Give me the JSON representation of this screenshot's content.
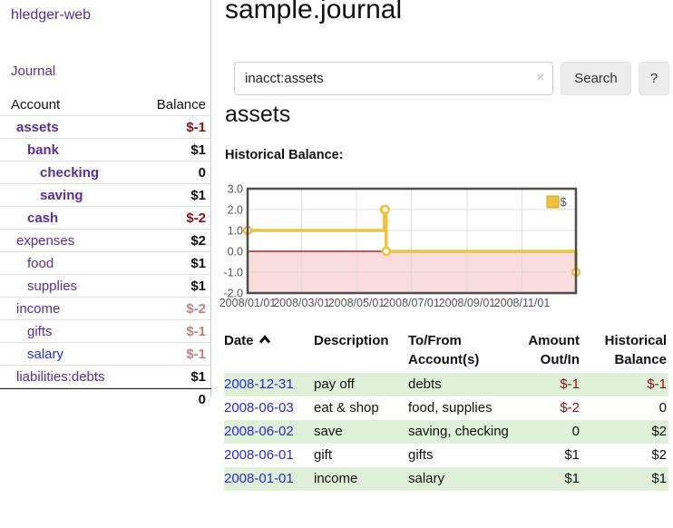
{
  "colors": {
    "accent_purple": "#5c2d91",
    "link_blue": "#2a2ad0",
    "negative": "#8b1212",
    "negative_light": "#c08080",
    "stripe_green": "#dff0d8",
    "chart_line_yellow": "#edc240",
    "chart_negative_region": "#fbdcdc",
    "chart_zero_line": "#a40000"
  },
  "sidebar": {
    "brand": "hledger-web",
    "journal_link": "Journal",
    "accounts": {
      "col_account": "Account",
      "col_balance": "Balance",
      "rows": [
        {
          "name": "assets",
          "level": 1,
          "bold": true,
          "balance": "$-1",
          "style": "negative"
        },
        {
          "name": "bank",
          "level": 2,
          "bold": true,
          "balance": "$1",
          "style": "normal"
        },
        {
          "name": "checking",
          "level": 3,
          "bold": true,
          "balance": "0",
          "style": "normal"
        },
        {
          "name": "saving",
          "level": 3,
          "bold": true,
          "balance": "$1",
          "style": "normal"
        },
        {
          "name": "cash",
          "level": 2,
          "bold": true,
          "balance": "$-2",
          "style": "negative"
        },
        {
          "name": "expenses",
          "level": 1,
          "bold": false,
          "balance": "$2",
          "style": "normal"
        },
        {
          "name": "food",
          "level": 2,
          "bold": false,
          "balance": "$1",
          "style": "normal"
        },
        {
          "name": "supplies",
          "level": 2,
          "bold": false,
          "balance": "$1",
          "style": "normal"
        },
        {
          "name": "income",
          "level": 1,
          "bold": false,
          "balance": "$-2",
          "style": "negative-light"
        },
        {
          "name": "gifts",
          "level": 2,
          "bold": false,
          "balance": "$-1",
          "style": "negative-light"
        },
        {
          "name": "salary",
          "level": 2,
          "bold": false,
          "balance": "$-1",
          "style": "negative-light",
          "link_color": "blue"
        },
        {
          "name": "liabilities:debts",
          "level": 1,
          "bold": false,
          "balance": "$1",
          "style": "normal"
        }
      ],
      "total": "0"
    }
  },
  "main": {
    "title": "sample.journal",
    "search": {
      "value": "inacct:assets",
      "clear_label": "×",
      "button_label": "Search",
      "help_label": "?"
    },
    "account_heading": "assets",
    "chart_heading": "Historical Balance:"
  },
  "chart_data": {
    "type": "line",
    "step": true,
    "title": "Historical Balance",
    "x_domain": [
      "2008-01-01",
      "2008-12-31"
    ],
    "ylim": [
      -2,
      3
    ],
    "yticks": [
      "3.0",
      "2.0",
      "1.0",
      "0.0",
      "-1.0",
      "-2.0"
    ],
    "xticks": [
      "2008/01/01",
      "2008/03/01",
      "2008/05/01",
      "2008/07/01",
      "2008/09/01",
      "2008/11/01"
    ],
    "grid": true,
    "legend_position": "top-right",
    "series": [
      {
        "name": "$",
        "color": "#edc240",
        "points": [
          [
            "2008-01-01",
            1
          ],
          [
            "2008-06-01",
            2
          ],
          [
            "2008-06-02",
            2
          ],
          [
            "2008-06-03",
            0
          ],
          [
            "2008-12-31",
            -1
          ]
        ]
      }
    ]
  },
  "transactions": {
    "headers": {
      "date": "Date",
      "description": "Description",
      "accounts": "To/From Account(s)",
      "amount": "Amount Out/In",
      "balance": "Historical Balance"
    },
    "rows": [
      {
        "date": "2008-12-31",
        "description": "pay off",
        "accounts": "debts",
        "amount": "$-1",
        "amount_style": "negative",
        "balance": "$-1",
        "balance_style": "negative"
      },
      {
        "date": "2008-06-03",
        "description": "eat & shop",
        "accounts": "food, supplies",
        "amount": "$-2",
        "amount_style": "negative",
        "balance": "0",
        "balance_style": "normal"
      },
      {
        "date": "2008-06-02",
        "description": "save",
        "accounts": "saving, checking",
        "amount": "0",
        "amount_style": "normal",
        "balance": "$2",
        "balance_style": "normal"
      },
      {
        "date": "2008-06-01",
        "description": "gift",
        "accounts": "gifts",
        "amount": "$1",
        "amount_style": "normal",
        "balance": "$2",
        "balance_style": "normal"
      },
      {
        "date": "2008-01-01",
        "description": "income",
        "accounts": "salary",
        "amount": "$1",
        "amount_style": "normal",
        "balance": "$1",
        "balance_style": "normal"
      }
    ]
  }
}
